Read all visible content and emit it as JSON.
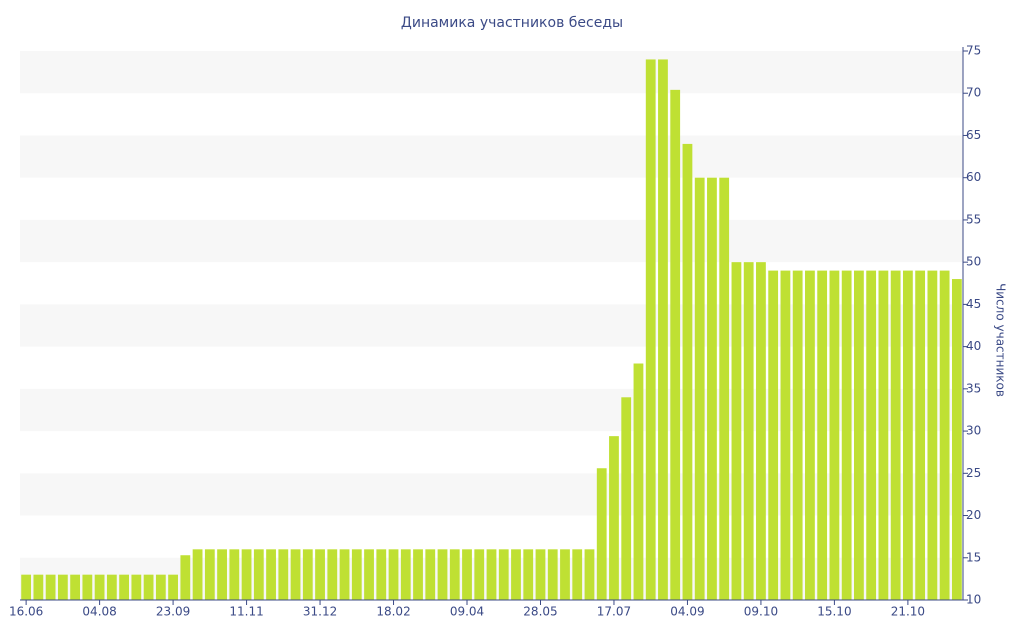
{
  "chart_data": {
    "type": "bar",
    "title": "Динамика участников беседы",
    "y_label": "Число участников",
    "categories": [
      "16.06",
      null,
      null,
      null,
      null,
      null,
      "04.08",
      null,
      null,
      null,
      null,
      null,
      "23.09",
      null,
      null,
      null,
      null,
      null,
      "11.11",
      null,
      null,
      null,
      null,
      null,
      "31.12",
      null,
      null,
      null,
      null,
      null,
      "18.02",
      null,
      null,
      null,
      null,
      null,
      "09.04",
      null,
      null,
      null,
      null,
      null,
      "28.05",
      null,
      null,
      null,
      null,
      null,
      "17.07",
      null,
      null,
      null,
      null,
      null,
      "04.09",
      null,
      null,
      null,
      null,
      null,
      "09.10",
      null,
      null,
      null,
      null,
      null,
      "15.10",
      null,
      null,
      null,
      null,
      null,
      "21.10",
      null,
      null,
      null,
      null
    ],
    "values": [
      13,
      13,
      13,
      13,
      13,
      13,
      13,
      13,
      13,
      13,
      13,
      13,
      13,
      15.3,
      16,
      16,
      16,
      16,
      16,
      16,
      16,
      16,
      16,
      16,
      16,
      16,
      16,
      16,
      16,
      16,
      16,
      16,
      16,
      16,
      16,
      16,
      16,
      16,
      16,
      16,
      16,
      16,
      16,
      16,
      16,
      16,
      16,
      25.6,
      29.4,
      34,
      38,
      74,
      74,
      70.4,
      64,
      60,
      60,
      60,
      50,
      50,
      50,
      49,
      49,
      49,
      49,
      49,
      49,
      49,
      49,
      49,
      49,
      49,
      49,
      49,
      49,
      49,
      48
    ],
    "color": "#bfe033",
    "ylim": [
      10,
      75
    ],
    "yticks": [
      10,
      15,
      20,
      25,
      30,
      35,
      40,
      45,
      50,
      55,
      60,
      65,
      70,
      75
    ],
    "grid": true,
    "y_axis_side": "right"
  }
}
